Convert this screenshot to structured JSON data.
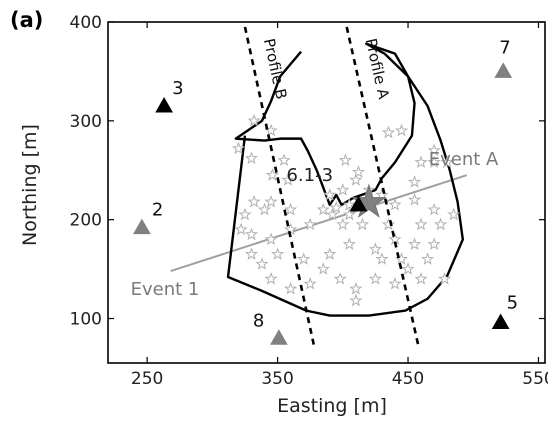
{
  "panel_label": "(a)",
  "axes": {
    "xlabel": "Easting [m]",
    "ylabel": "Northing [m]",
    "xlim": [
      220,
      555
    ],
    "ylim": [
      55,
      400
    ],
    "xticks": [
      250,
      350,
      450,
      550
    ],
    "yticks": [
      100,
      200,
      300,
      400
    ]
  },
  "colors": {
    "black": "#000000",
    "gray": "#808080",
    "event_line": "#a0a0a0",
    "star": "#b0b0b0"
  },
  "stations": [
    {
      "label": "3",
      "x": 263,
      "y": 315,
      "color": "black"
    },
    {
      "label": "2",
      "x": 246,
      "y": 192,
      "color": "gray"
    },
    {
      "label": "7",
      "x": 523,
      "y": 350,
      "color": "gray"
    },
    {
      "label": "5",
      "x": 521,
      "y": 96,
      "color": "black"
    },
    {
      "label": "8",
      "x": 351,
      "y": 80,
      "color": "gray"
    },
    {
      "label": "6.1-3",
      "x": 412,
      "y": 215,
      "color": "black"
    }
  ],
  "profiles": [
    {
      "label": "Profile B",
      "points": [
        [
          325,
          395
        ],
        [
          378,
          72
        ]
      ]
    },
    {
      "label": "Profile A",
      "points": [
        [
          403,
          395
        ],
        [
          458,
          72
        ]
      ]
    }
  ],
  "event_lines": [
    {
      "start_label": "Event 1",
      "end_label": "Event A",
      "points": [
        [
          268,
          148
        ],
        [
          495,
          245
        ]
      ]
    }
  ],
  "boundary": [
    [
      368,
      370
    ],
    [
      352,
      345
    ],
    [
      345,
      320
    ],
    [
      338,
      300
    ],
    [
      318,
      282
    ],
    [
      340,
      280
    ],
    [
      352,
      282
    ],
    [
      368,
      282
    ],
    [
      373,
      270
    ],
    [
      380,
      250
    ],
    [
      390,
      215
    ],
    [
      395,
      225
    ],
    [
      399,
      215
    ],
    [
      408,
      222
    ],
    [
      425,
      230
    ],
    [
      430,
      242
    ],
    [
      440,
      258
    ],
    [
      453,
      285
    ],
    [
      455,
      318
    ],
    [
      450,
      345
    ],
    [
      440,
      368
    ],
    [
      418,
      378
    ],
    [
      432,
      368
    ],
    [
      450,
      345
    ],
    [
      465,
      315
    ],
    [
      475,
      280
    ],
    [
      482,
      250
    ],
    [
      488,
      218
    ],
    [
      492,
      180
    ],
    [
      480,
      143
    ],
    [
      465,
      120
    ],
    [
      448,
      108
    ],
    [
      420,
      103
    ],
    [
      390,
      103
    ],
    [
      372,
      108
    ],
    [
      355,
      118
    ],
    [
      338,
      128
    ],
    [
      312,
      142
    ],
    [
      325,
      285
    ]
  ],
  "small_stars": [
    [
      332,
      300
    ],
    [
      345,
      290
    ],
    [
      330,
      262
    ],
    [
      346,
      245
    ],
    [
      355,
      260
    ],
    [
      320,
      272
    ],
    [
      345,
      218
    ],
    [
      360,
      210
    ],
    [
      340,
      210
    ],
    [
      325,
      205
    ],
    [
      322,
      190
    ],
    [
      330,
      185
    ],
    [
      345,
      180
    ],
    [
      360,
      190
    ],
    [
      375,
      195
    ],
    [
      385,
      210
    ],
    [
      392,
      205
    ],
    [
      400,
      195
    ],
    [
      405,
      205
    ],
    [
      395,
      212
    ],
    [
      390,
      225
    ],
    [
      400,
      230
    ],
    [
      410,
      240
    ],
    [
      420,
      230
    ],
    [
      430,
      225
    ],
    [
      440,
      215
    ],
    [
      455,
      220
    ],
    [
      470,
      210
    ],
    [
      460,
      195
    ],
    [
      475,
      195
    ],
    [
      485,
      205
    ],
    [
      435,
      195
    ],
    [
      440,
      180
    ],
    [
      455,
      175
    ],
    [
      470,
      175
    ],
    [
      465,
      160
    ],
    [
      450,
      150
    ],
    [
      440,
      135
    ],
    [
      425,
      140
    ],
    [
      410,
      130
    ],
    [
      398,
      140
    ],
    [
      385,
      150
    ],
    [
      375,
      135
    ],
    [
      360,
      130
    ],
    [
      345,
      140
    ],
    [
      338,
      155
    ],
    [
      330,
      165
    ],
    [
      350,
      165
    ],
    [
      370,
      160
    ],
    [
      390,
      165
    ],
    [
      405,
      175
    ],
    [
      425,
      170
    ],
    [
      415,
      195
    ],
    [
      405,
      215
    ],
    [
      430,
      160
    ],
    [
      445,
      160
    ],
    [
      460,
      140
    ],
    [
      478,
      140
    ],
    [
      410,
      118
    ],
    [
      435,
      288
    ],
    [
      445,
      290
    ],
    [
      470,
      270
    ],
    [
      470,
      258
    ],
    [
      460,
      258
    ],
    [
      480,
      258
    ],
    [
      455,
      238
    ],
    [
      402,
      260
    ],
    [
      412,
      248
    ],
    [
      332,
      218
    ],
    [
      358,
      240
    ]
  ],
  "big_star": [
    420,
    217
  ]
}
